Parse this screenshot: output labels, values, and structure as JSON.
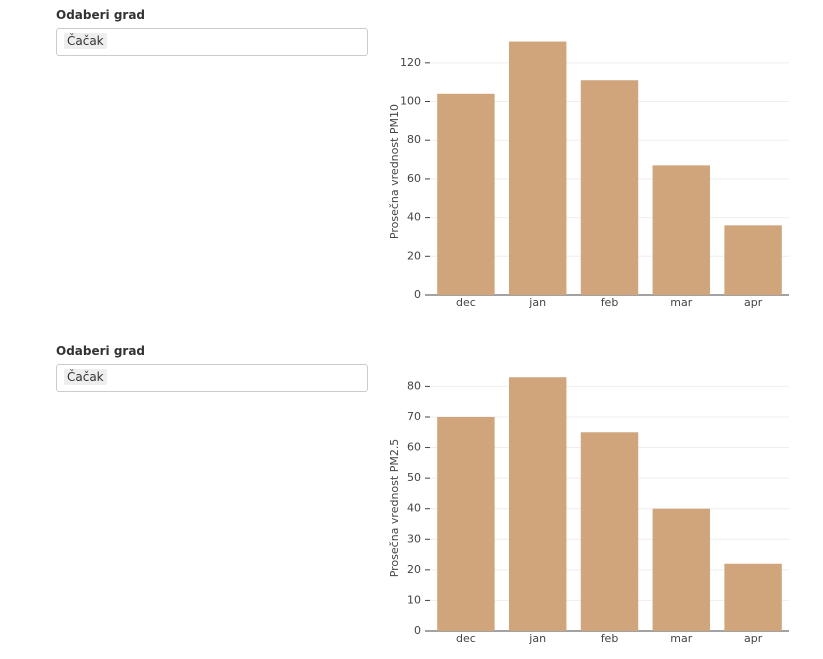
{
  "controls": [
    {
      "label": "Odaberi grad",
      "value": "Čačak"
    },
    {
      "label": "Odaberi grad",
      "value": "Čačak"
    }
  ],
  "chart_data": [
    {
      "type": "bar",
      "y_label": "Prosečna vrednost PM10",
      "categories": [
        "dec",
        "jan",
        "feb",
        "mar",
        "apr"
      ],
      "values": [
        104,
        131,
        111,
        67,
        36
      ],
      "color": "#d0a57c",
      "ylim": [
        0,
        138
      ],
      "yticks": [
        0,
        20,
        40,
        60,
        80,
        100,
        120
      ],
      "grid": true
    },
    {
      "type": "bar",
      "y_label": "Prosečna vrednost PM2.5",
      "categories": [
        "dec",
        "jan",
        "feb",
        "mar",
        "apr"
      ],
      "values": [
        70,
        83,
        65,
        40,
        22
      ],
      "color": "#d0a57c",
      "ylim": [
        0,
        87
      ],
      "yticks": [
        0,
        10,
        20,
        30,
        40,
        50,
        60,
        70,
        80
      ],
      "grid": true
    }
  ]
}
